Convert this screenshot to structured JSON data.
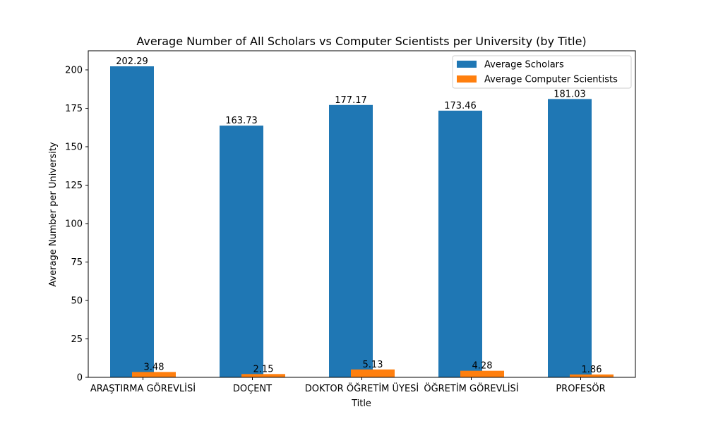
{
  "chart_data": {
    "type": "bar",
    "title": "Average Number of All Scholars vs Computer Scientists per University (by Title)",
    "xlabel": "Title",
    "ylabel": "Average Number per University",
    "categories": [
      "ARAŞTIRMA GÖREVLİSİ",
      "DOÇENT",
      "DOKTOR ÖĞRETİM ÜYESİ",
      "ÖĞRETİM GÖREVLİSİ",
      "PROFESÖR"
    ],
    "series": [
      {
        "name": "Average Scholars",
        "color": "#1f77b4",
        "values": [
          202.29,
          163.73,
          177.17,
          173.46,
          181.03
        ],
        "labels": [
          "202.29",
          "163.73",
          "177.17",
          "173.46",
          "181.03"
        ]
      },
      {
        "name": "Average Computer Scientists",
        "color": "#ff7f0e",
        "values": [
          3.48,
          2.15,
          5.13,
          4.28,
          1.86
        ],
        "labels": [
          "3.48",
          "2.15",
          "5.13",
          "4.28",
          "1.86"
        ]
      }
    ],
    "ylim": [
      0,
      212.4
    ],
    "yticks": [
      0,
      25,
      50,
      75,
      100,
      125,
      150,
      175,
      200
    ],
    "legend": "top-right",
    "grid": false
  }
}
